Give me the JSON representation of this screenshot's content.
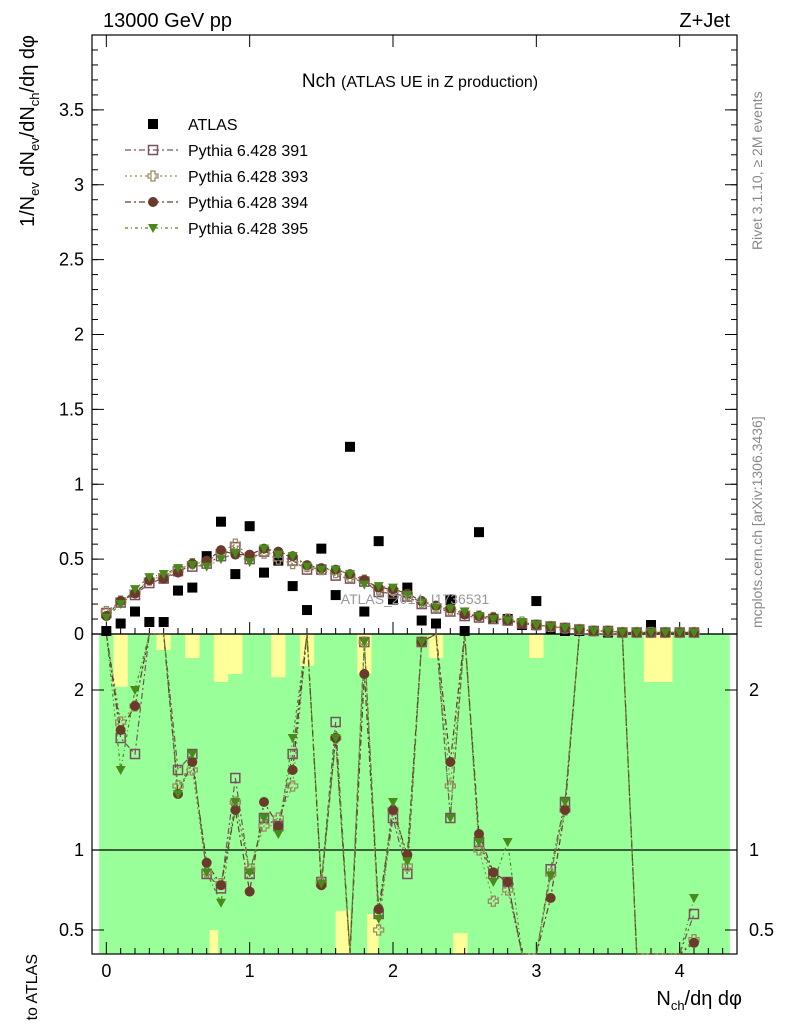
{
  "header": {
    "left": "13000 GeV pp",
    "right": "Z+Jet",
    "title_main": "Nch",
    "title_sub": "(ATLAS UE in Z production)"
  },
  "side": {
    "rivet": "Rivet 3.1.10, ≥ 2M events",
    "mcplots": "mcplots.cern.ch [arXiv:1306.3436]"
  },
  "watermark": "ATLAS_2014_I1736531",
  "axes": {
    "main_ylabel": "1/N_ev dN_ev/dN_ch/dη dφ",
    "ratio_ylabel": "Ratio to ATLAS",
    "xlabel": "N_ch/dη dφ"
  },
  "colors": {
    "data": "#000000",
    "s391": "#7a5060",
    "s393": "#9a8a60",
    "s394": "#6a3a2a",
    "s395": "#4a8a1a",
    "band_green": "#99ff99",
    "band_yellow": "#ffff99"
  },
  "chart_data": {
    "type": "scatter",
    "xlim": [
      -0.1,
      4.4
    ],
    "ylim": [
      0,
      4.0
    ],
    "ratio_ylim": [
      0.35,
      2.35
    ],
    "x_ticks": [
      "0",
      "1",
      "2",
      "3",
      "4"
    ],
    "y_ticks": [
      "0",
      "0.5",
      "1",
      "1.5",
      "2",
      "2.5",
      "3",
      "3.5"
    ],
    "ratio_ticks": [
      "0.5",
      "1",
      "2"
    ],
    "x": [
      0.0,
      0.1,
      0.2,
      0.3,
      0.4,
      0.5,
      0.6,
      0.7,
      0.8,
      0.9,
      1.0,
      1.1,
      1.2,
      1.3,
      1.4,
      1.5,
      1.6,
      1.7,
      1.8,
      1.9,
      2.0,
      2.1,
      2.2,
      2.3,
      2.4,
      2.5,
      2.6,
      2.7,
      2.8,
      2.9,
      3.0,
      3.1,
      3.2,
      3.3,
      3.4,
      3.5,
      3.6,
      3.7,
      3.8,
      3.9,
      4.0,
      4.1
    ],
    "series": [
      {
        "name": "ATLAS",
        "marker": "square-filled",
        "values": [
          0.02,
          0.07,
          0.15,
          0.08,
          0.08,
          0.29,
          0.31,
          0.52,
          0.75,
          0.4,
          0.72,
          0.41,
          0.49,
          0.32,
          0.16,
          0.57,
          0.26,
          1.25,
          0.15,
          0.62,
          0.23,
          0.31,
          0.09,
          0.07,
          0.23,
          0.02,
          0.68,
          0.1,
          0.1,
          0.06,
          0.22,
          0.03,
          0.02,
          0.02,
          0.02,
          0.01,
          0.01,
          0.01,
          0.06,
          0.01,
          0.01,
          0.01
        ]
      },
      {
        "name": "Pythia 6.428 391",
        "marker": "square-open",
        "values": [
          0.14,
          0.21,
          0.26,
          0.34,
          0.37,
          0.42,
          0.45,
          0.47,
          0.52,
          0.58,
          0.5,
          0.55,
          0.52,
          0.49,
          0.43,
          0.43,
          0.39,
          0.37,
          0.35,
          0.28,
          0.27,
          0.25,
          0.2,
          0.17,
          0.15,
          0.12,
          0.11,
          0.1,
          0.09,
          0.07,
          0.06,
          0.05,
          0.04,
          0.03,
          0.02,
          0.02,
          0.01,
          0.01,
          0.01,
          0.01,
          0.01,
          0.01
        ],
        "ratio": [
          2.6,
          1.7,
          1.6,
          2.6,
          2.5,
          1.5,
          1.6,
          0.85,
          0.76,
          1.45,
          0.85,
          1.2,
          1.15,
          1.6,
          2.6,
          0.8,
          1.8,
          0.35,
          2.3,
          0.6,
          1.2,
          0.85,
          2.3,
          2.5,
          1.2,
          2.6,
          1.05,
          0.85,
          0.8,
          0.35,
          0.35,
          0.88,
          1.3,
          2.5,
          2.5,
          2.5,
          2.5,
          0.35,
          0.35,
          0.35,
          0.35,
          0.6
        ]
      },
      {
        "name": "Pythia 6.428 393",
        "marker": "plus-open",
        "values": [
          0.15,
          0.22,
          0.28,
          0.36,
          0.39,
          0.43,
          0.47,
          0.48,
          0.55,
          0.6,
          0.52,
          0.54,
          0.5,
          0.47,
          0.45,
          0.43,
          0.41,
          0.38,
          0.36,
          0.3,
          0.29,
          0.26,
          0.21,
          0.18,
          0.16,
          0.14,
          0.12,
          0.11,
          0.1,
          0.08,
          0.06,
          0.05,
          0.04,
          0.03,
          0.02,
          0.02,
          0.01,
          0.01,
          0.01,
          0.01,
          0.01,
          0.01
        ],
        "ratio": [
          2.6,
          1.8,
          1.9,
          2.6,
          2.5,
          1.4,
          1.5,
          0.86,
          0.79,
          1.3,
          0.88,
          1.15,
          1.2,
          1.4,
          2.6,
          0.8,
          1.7,
          0.35,
          2.3,
          0.5,
          1.25,
          0.9,
          2.3,
          2.5,
          1.4,
          2.6,
          1.0,
          0.68,
          0.75,
          0.35,
          0.35,
          0.85,
          1.25,
          2.5,
          2.5,
          2.5,
          2.5,
          0.35,
          0.35,
          0.35,
          0.35,
          0.44
        ]
      },
      {
        "name": "Pythia 6.428 394",
        "marker": "circle-filled",
        "values": [
          0.12,
          0.22,
          0.27,
          0.36,
          0.37,
          0.41,
          0.47,
          0.49,
          0.56,
          0.53,
          0.53,
          0.57,
          0.55,
          0.52,
          0.46,
          0.44,
          0.43,
          0.4,
          0.36,
          0.31,
          0.3,
          0.27,
          0.22,
          0.19,
          0.17,
          0.13,
          0.12,
          0.11,
          0.09,
          0.07,
          0.06,
          0.05,
          0.04,
          0.03,
          0.02,
          0.02,
          0.01,
          0.01,
          0.01,
          0.01,
          0.01,
          0.01
        ],
        "ratio": [
          2.6,
          1.75,
          1.9,
          2.6,
          2.5,
          1.35,
          1.55,
          0.92,
          0.78,
          1.25,
          0.74,
          1.3,
          1.15,
          1.5,
          2.6,
          0.78,
          1.7,
          0.35,
          2.1,
          0.63,
          1.25,
          0.97,
          2.3,
          2.5,
          1.55,
          2.6,
          1.1,
          0.86,
          0.8,
          0.35,
          0.35,
          0.7,
          1.25,
          2.5,
          2.5,
          2.5,
          2.5,
          0.35,
          0.35,
          0.35,
          0.35,
          0.42
        ]
      },
      {
        "name": "Pythia 6.428 395",
        "marker": "triangle-down-filled",
        "values": [
          0.11,
          0.2,
          0.3,
          0.38,
          0.4,
          0.44,
          0.46,
          0.45,
          0.5,
          0.54,
          0.48,
          0.57,
          0.53,
          0.52,
          0.45,
          0.43,
          0.43,
          0.4,
          0.33,
          0.32,
          0.31,
          0.26,
          0.21,
          0.18,
          0.17,
          0.15,
          0.12,
          0.1,
          0.09,
          0.08,
          0.06,
          0.05,
          0.04,
          0.03,
          0.02,
          0.02,
          0.01,
          0.01,
          0.01,
          0.01,
          0.01,
          0.01
        ],
        "ratio": [
          2.6,
          1.5,
          2.0,
          2.6,
          2.5,
          1.35,
          1.6,
          0.86,
          0.67,
          1.3,
          0.86,
          1.2,
          1.1,
          1.7,
          2.6,
          0.79,
          1.7,
          0.35,
          2.3,
          0.57,
          1.3,
          0.93,
          2.3,
          2.5,
          1.2,
          2.6,
          1.05,
          0.8,
          1.05,
          0.35,
          0.35,
          0.84,
          1.3,
          2.5,
          2.5,
          2.5,
          2.5,
          0.35,
          0.35,
          0.35,
          0.35,
          0.7
        ]
      }
    ],
    "legend": "top-left"
  }
}
